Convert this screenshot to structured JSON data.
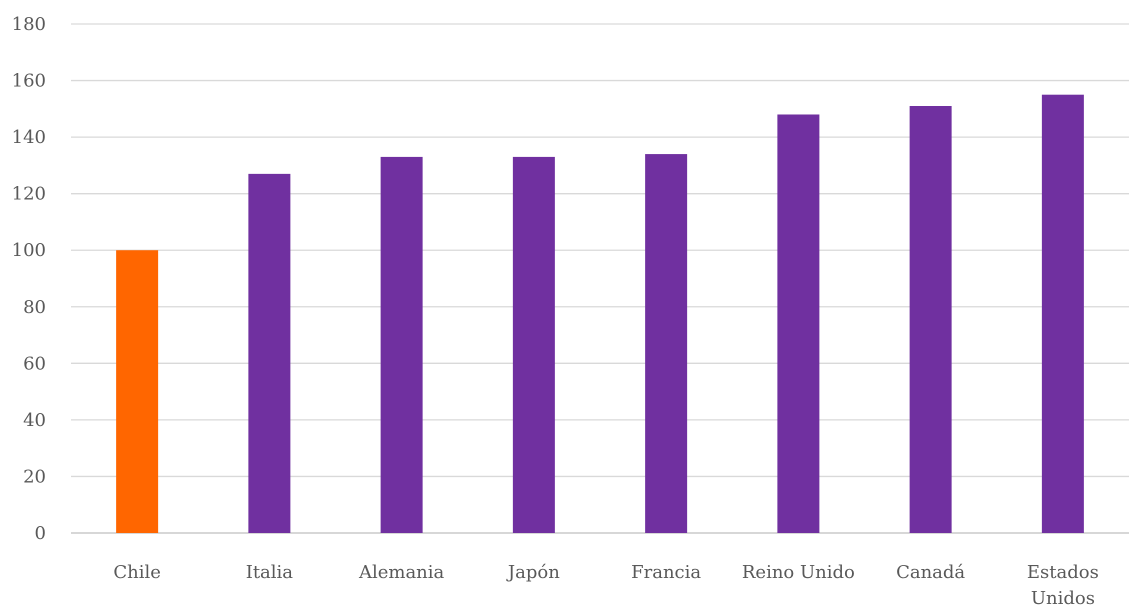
{
  "chart_data": {
    "type": "bar",
    "title": "",
    "xlabel": "",
    "ylabel": "",
    "categories": [
      "Chile",
      "Italia",
      "Alemania",
      "Japón",
      "Francia",
      "Reino Unido",
      "Canadá",
      "Estados Unidos"
    ],
    "values": [
      100,
      127,
      133,
      133,
      134,
      148,
      151,
      155
    ],
    "ylim": [
      0,
      180
    ],
    "yticks": [
      0,
      20,
      40,
      60,
      80,
      100,
      120,
      140,
      160,
      180
    ],
    "grid": true,
    "legend": "none",
    "colors": {
      "highlight": "#ff6600",
      "default": "#7030a0"
    },
    "highlight_category": "Chile"
  }
}
